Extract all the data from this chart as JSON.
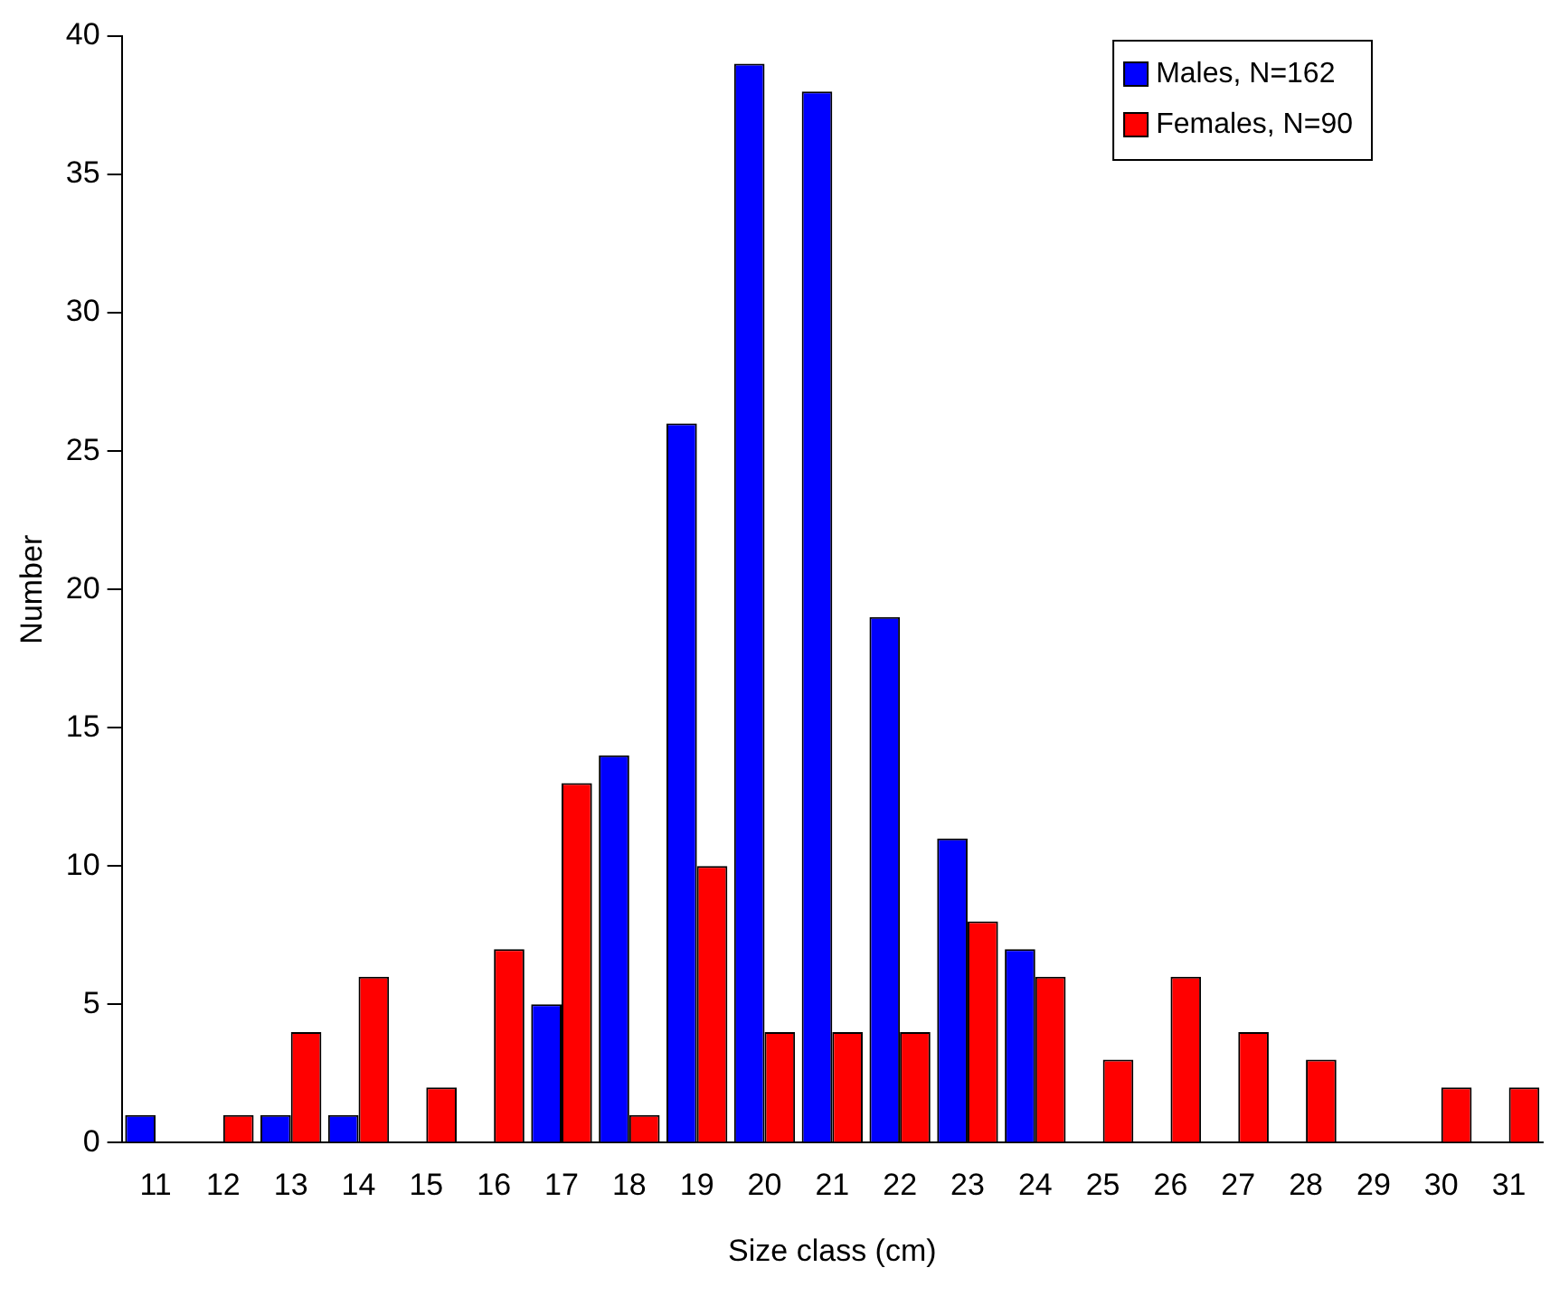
{
  "chart_data": {
    "type": "bar",
    "xlabel": "Size class (cm)",
    "ylabel": "Number",
    "categories": [
      "11",
      "12",
      "13",
      "14",
      "15",
      "16",
      "17",
      "18",
      "19",
      "20",
      "21",
      "22",
      "23",
      "24",
      "25",
      "26",
      "27",
      "28",
      "29",
      "30",
      "31"
    ],
    "series": [
      {
        "name": "Males, N=162",
        "color": "#0000ff",
        "values": [
          1,
          0,
          1,
          1,
          0,
          0,
          5,
          14,
          26,
          39,
          38,
          19,
          11,
          7,
          0,
          0,
          0,
          0,
          0,
          0,
          0
        ]
      },
      {
        "name": "Females, N=90",
        "color": "#ff0000",
        "values": [
          0,
          1,
          4,
          6,
          2,
          7,
          13,
          1,
          10,
          4,
          4,
          4,
          8,
          6,
          3,
          6,
          4,
          3,
          0,
          2,
          2
        ]
      }
    ],
    "ylim": [
      0,
      40
    ],
    "yticks": [
      0,
      5,
      10,
      15,
      20,
      25,
      30,
      35,
      40
    ],
    "grid": false,
    "legend": "top right"
  }
}
